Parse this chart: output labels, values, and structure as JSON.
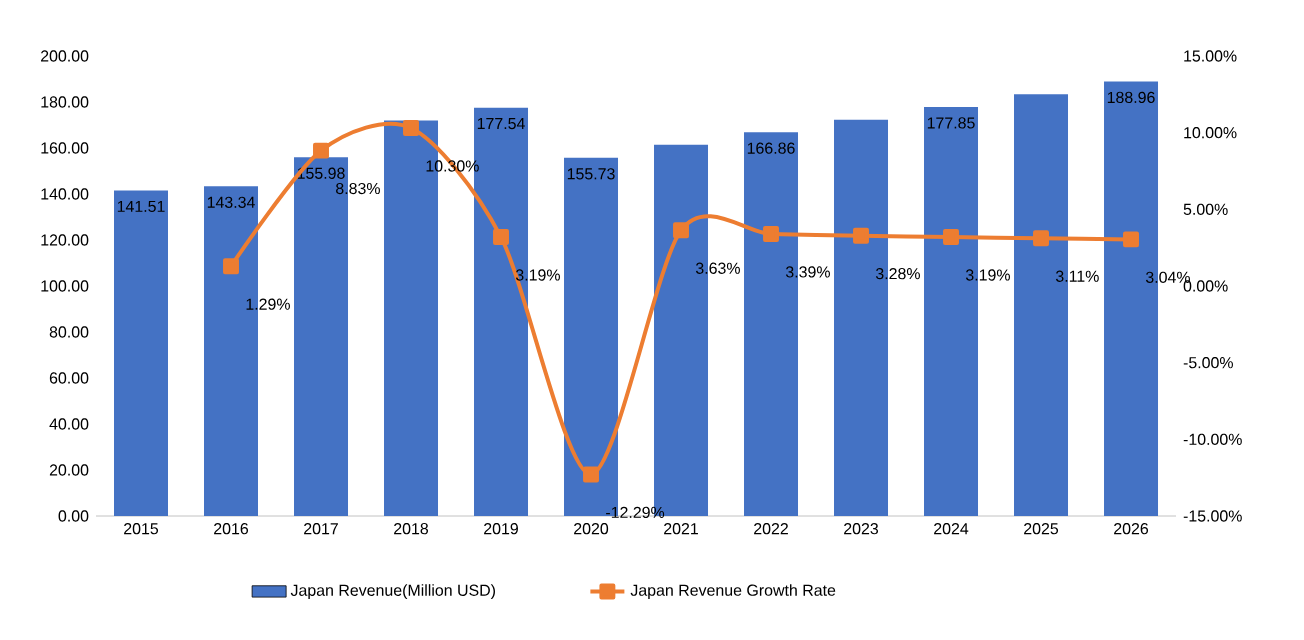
{
  "chart_data": {
    "type": "bar",
    "categories": [
      "2015",
      "2016",
      "2017",
      "2018",
      "2019",
      "2020",
      "2021",
      "2022",
      "2023",
      "2024",
      "2025",
      "2026"
    ],
    "series": [
      {
        "name": "Japan Revenue(Million USD)",
        "color": "#4472c4",
        "values": [
          141.51,
          143.34,
          155.98,
          172.0,
          177.54,
          155.73,
          161.4,
          166.86,
          172.3,
          177.85,
          183.4,
          188.96
        ],
        "value_labels": [
          "141.51",
          "143.34",
          "155.98",
          null,
          "177.54",
          "155.73",
          null,
          "166.86",
          null,
          "177.85",
          null,
          "188.96"
        ]
      },
      {
        "name": "Japan Revenue Growth Rate",
        "type": "line",
        "axis": "y2",
        "color": "#ed7d31",
        "marker": "square",
        "line_style": "solid",
        "values": [
          null,
          1.29,
          8.83,
          10.3,
          3.19,
          -12.29,
          3.63,
          3.39,
          3.28,
          3.19,
          3.11,
          3.04
        ],
        "value_labels": [
          null,
          "1.29%",
          "8.83%",
          "10.30%",
          "3.19%",
          "-12.29%",
          "3.63%",
          "3.39%",
          "3.28%",
          "3.19%",
          "3.11%",
          "3.04%"
        ]
      }
    ],
    "ylim": [
      0,
      200
    ],
    "yticks": [
      {
        "value": 0,
        "label": "0.00"
      },
      {
        "value": 20,
        "label": "20.00"
      },
      {
        "value": 40,
        "label": "40.00"
      },
      {
        "value": 60,
        "label": "60.00"
      },
      {
        "value": 80,
        "label": "80.00"
      },
      {
        "value": 100,
        "label": "100.00"
      },
      {
        "value": 120,
        "label": "120.00"
      },
      {
        "value": 140,
        "label": "140.00"
      },
      {
        "value": 160,
        "label": "160.00"
      },
      {
        "value": 180,
        "label": "180.00"
      },
      {
        "value": 200,
        "label": "200.00"
      }
    ],
    "y2lim": [
      -15,
      15
    ],
    "y2ticks": [
      {
        "value": -15,
        "label": "-15.00%"
      },
      {
        "value": -10,
        "label": "-10.00%"
      },
      {
        "value": -5,
        "label": "-5.00%"
      },
      {
        "value": 0,
        "label": "0.00%"
      },
      {
        "value": 5,
        "label": "5.00%"
      },
      {
        "value": 10,
        "label": "10.00%"
      },
      {
        "value": 15,
        "label": "15.00%"
      }
    ],
    "legend": "bottom"
  }
}
